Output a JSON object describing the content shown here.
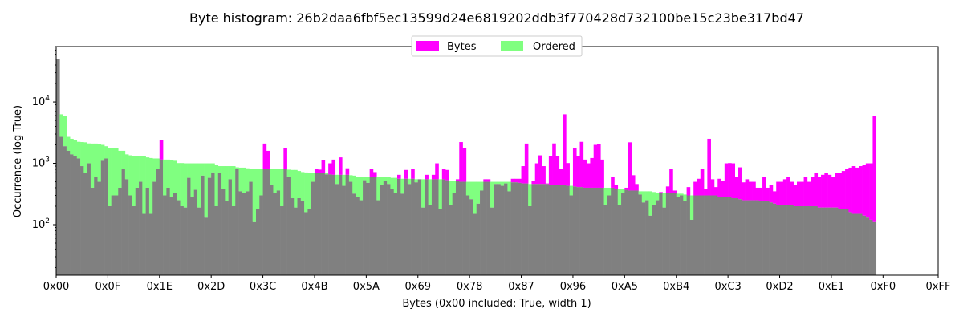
{
  "chart_data": {
    "type": "bar",
    "title": "Byte histogram: 26b2daa6fbf5ec13599d24e6819202ddb3f770428d732100be15c23be317bd47",
    "xlabel": "Bytes (0x00 included: True, width 1)",
    "ylabel": "Occurrence (log True)",
    "yscale": "log",
    "ylim": [
      15,
      80000
    ],
    "xlim": [
      0,
      256
    ],
    "xticks": [
      "0x00",
      "0x0F",
      "0x1E",
      "0x2D",
      "0x3C",
      "0x4B",
      "0x5A",
      "0x69",
      "0x78",
      "0x87",
      "0x96",
      "0xA5",
      "0xB4",
      "0xC3",
      "0xD2",
      "0xE1",
      "0xF0",
      "0xFF"
    ],
    "ytick_labels": [
      "10^2",
      "10^3",
      "10^4"
    ],
    "legend": {
      "placement": "top-center",
      "entries": [
        "Bytes",
        "Ordered"
      ]
    },
    "colors": {
      "bytes": "#ff00ff",
      "ordered": "#80ff80",
      "overlap": "#808080"
    },
    "series": [
      {
        "name": "Bytes",
        "note_byte_order": "values indexed by byte 0x00..0xFF",
        "values": [
          50000,
          2700,
          1900,
          1600,
          1400,
          1300,
          1200,
          900,
          700,
          1000,
          400,
          600,
          500,
          1100,
          1200,
          200,
          300,
          300,
          400,
          800,
          550,
          300,
          200,
          400,
          500,
          150,
          400,
          150,
          500,
          800,
          2400,
          300,
          400,
          280,
          330,
          250,
          200,
          190,
          580,
          280,
          370,
          190,
          630,
          130,
          580,
          710,
          200,
          690,
          380,
          240,
          550,
          200,
          800,
          350,
          330,
          350,
          500,
          110,
          180,
          300,
          2100,
          1600,
          440,
          330,
          360,
          200,
          1750,
          600,
          270,
          190,
          270,
          240,
          160,
          180,
          500,
          820,
          790,
          1120,
          660,
          1000,
          1150,
          460,
          1250,
          430,
          830,
          500,
          320,
          280,
          250,
          530,
          480,
          800,
          720,
          250,
          440,
          510,
          460,
          380,
          330,
          650,
          320,
          780,
          460,
          800,
          490,
          550,
          190,
          650,
          210,
          650,
          1000,
          180,
          800,
          780,
          210,
          330,
          550,
          2220,
          1750,
          300,
          260,
          150,
          220,
          360,
          550,
          550,
          190,
          460,
          460,
          430,
          470,
          350,
          560,
          560,
          560,
          900,
          2100,
          200,
          510,
          1000,
          1350,
          900,
          470,
          1300,
          2110,
          1300,
          800,
          6300,
          1010,
          300,
          1800,
          1300,
          2240,
          1150,
          1000,
          1220,
          2000,
          2040,
          1150,
          210,
          300,
          600,
          450,
          210,
          330,
          400,
          2200,
          640,
          460,
          310,
          230,
          250,
          140,
          210,
          250,
          340,
          190,
          420,
          810,
          360,
          280,
          300,
          240,
          410,
          120,
          500,
          560,
          820,
          380,
          2510,
          550,
          410,
          560,
          510,
          1000,
          1010,
          1000,
          600,
          860,
          490,
          550,
          500,
          500,
          400,
          400,
          600,
          400,
          450,
          350,
          500,
          500,
          550,
          600,
          500,
          450,
          500,
          500,
          600,
          500,
          600,
          700,
          600,
          650,
          700,
          650,
          600,
          700,
          700,
          750,
          800,
          850,
          900,
          850,
          900,
          950,
          1000,
          1000,
          6000
        ]
      },
      {
        "name": "Ordered",
        "values": []
      }
    ]
  }
}
